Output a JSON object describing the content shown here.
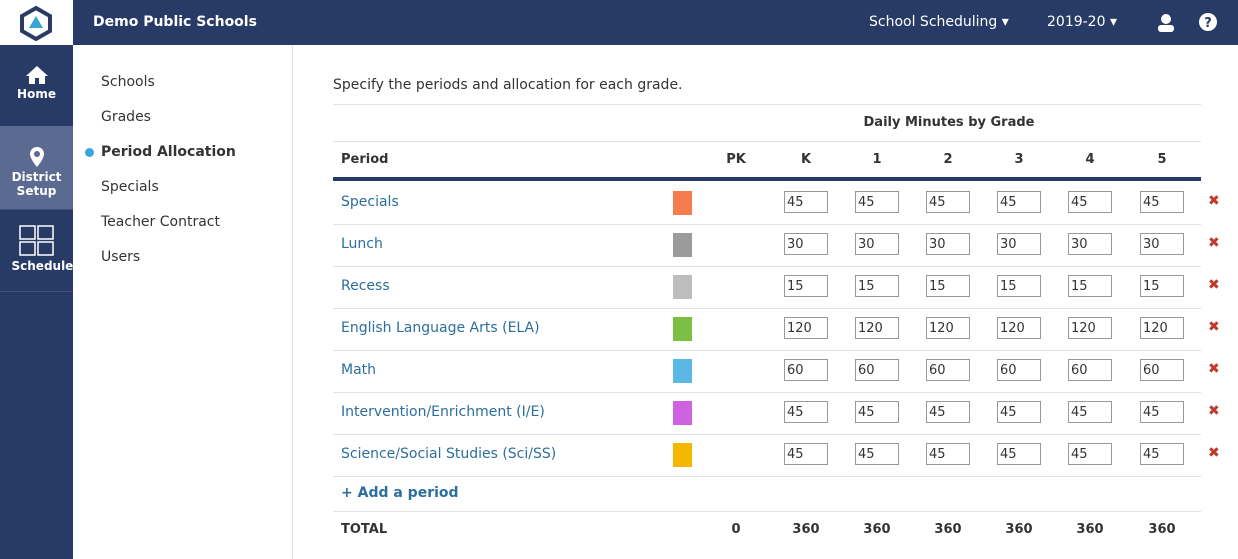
{
  "header": {
    "org": "Demo Public Schools",
    "menus": [
      "School Scheduling",
      "2019-20"
    ]
  },
  "sidebar": {
    "items": [
      "Home",
      "District Setup",
      "Schedules"
    ],
    "active": 1
  },
  "subnav": {
    "items": [
      "Schools",
      "Grades",
      "Period Allocation",
      "Specials",
      "Teacher Contract",
      "Users"
    ],
    "active": 2
  },
  "content": {
    "instruction": "Specify the periods and allocation for each grade.",
    "group_header": "Daily Minutes by Grade",
    "columns": [
      "Period",
      "PK",
      "K",
      "1",
      "2",
      "3",
      "4",
      "5"
    ],
    "rows": [
      {
        "name": "Specials",
        "color": "#f47c4e",
        "values": [
          45,
          45,
          45,
          45,
          45,
          45
        ]
      },
      {
        "name": "Lunch",
        "color": "#9b9b9b",
        "values": [
          30,
          30,
          30,
          30,
          30,
          30
        ]
      },
      {
        "name": "Recess",
        "color": "#bdbdbd",
        "values": [
          15,
          15,
          15,
          15,
          15,
          15
        ]
      },
      {
        "name": "English Language Arts (ELA)",
        "color": "#7bc043",
        "values": [
          120,
          120,
          120,
          120,
          120,
          120
        ]
      },
      {
        "name": "Math",
        "color": "#5bb8e4",
        "values": [
          60,
          60,
          60,
          60,
          60,
          60
        ]
      },
      {
        "name": "Intervention/Enrichment (I/E)",
        "color": "#cf62e0",
        "values": [
          45,
          45,
          45,
          45,
          45,
          45
        ]
      },
      {
        "name": "Science/Social Studies (Sci/SS)",
        "color": "#f5b800",
        "values": [
          45,
          45,
          45,
          45,
          45,
          45
        ]
      }
    ],
    "add_link": "+ Add a period",
    "total": {
      "label": "TOTAL",
      "values": [
        0,
        360,
        360,
        360,
        360,
        360,
        360
      ]
    }
  }
}
